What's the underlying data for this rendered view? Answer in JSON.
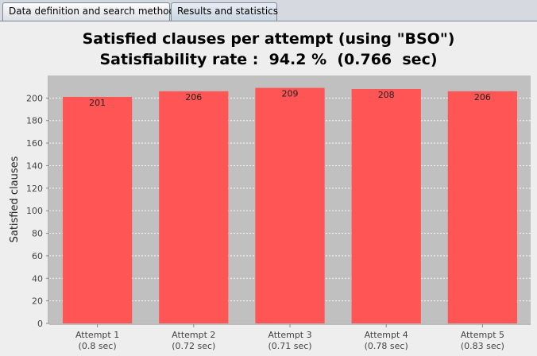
{
  "tabs": [
    {
      "label": "Data definition and search method"
    },
    {
      "label": "Results and statistics"
    }
  ],
  "active_tab": 1,
  "chart_data": {
    "type": "bar",
    "title": "Satisfied clauses per attempt (using \"BSO\")",
    "subtitle": "Satisfiability rate :  94.2 %  (0.766  sec)",
    "ylabel": "Satisfied clauses",
    "xlabel": "",
    "categories": [
      "Attempt 1",
      "Attempt 2",
      "Attempt 3",
      "Attempt 4",
      "Attempt 5"
    ],
    "category_sublabels": [
      "(0.8  sec)",
      "(0.72  sec)",
      "(0.71  sec)",
      "(0.78  sec)",
      "(0.83  sec)"
    ],
    "values": [
      201,
      206,
      209,
      208,
      206
    ],
    "ylim": [
      0,
      220
    ],
    "yticks": [
      0,
      20,
      40,
      60,
      80,
      100,
      120,
      140,
      160,
      180,
      200
    ],
    "grid": true,
    "colors": {
      "bar": "#ff5555",
      "plot_background": "#c0c0c0",
      "gridline": "#ffffff"
    }
  }
}
